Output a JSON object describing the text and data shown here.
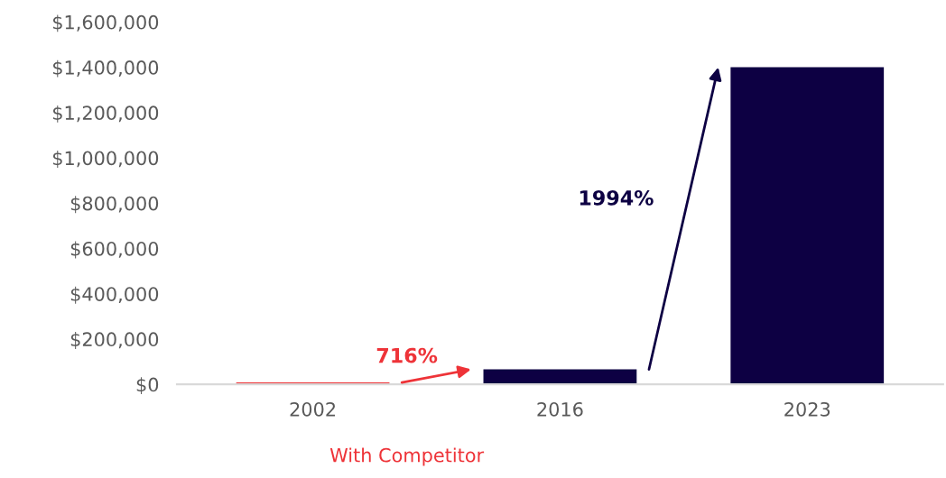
{
  "chart_data": {
    "type": "bar",
    "categories": [
      "2002",
      "2016",
      "2023"
    ],
    "series": [
      {
        "name": "With Competitor",
        "color": "#ee3338",
        "values": [
          8000,
          null,
          null
        ]
      },
      {
        "color": "#0d0043",
        "values": [
          null,
          66000,
          1400000
        ]
      }
    ],
    "ylim": [
      0,
      1600000
    ],
    "yticks": [
      {
        "value": 0,
        "label": "$0"
      },
      {
        "value": 200000,
        "label": "$200,000"
      },
      {
        "value": 400000,
        "label": "$400,000"
      },
      {
        "value": 600000,
        "label": "$600,000"
      },
      {
        "value": 800000,
        "label": "$800,000"
      },
      {
        "value": 1000000,
        "label": "$1,000,000"
      },
      {
        "value": 1200000,
        "label": "$1,200,000"
      },
      {
        "value": 1400000,
        "label": "$1,400,000"
      },
      {
        "value": 1600000,
        "label": "$1,600,000"
      }
    ],
    "annotations": [
      "716%",
      "1994%"
    ],
    "grid": false,
    "legend": "bottom"
  }
}
